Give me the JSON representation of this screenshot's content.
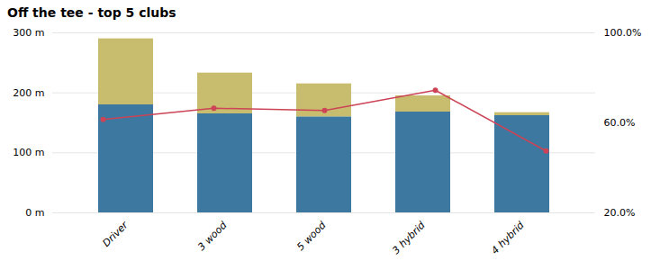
{
  "chart_data": {
    "type": "bar",
    "title": "Off the tee - top 5 clubs",
    "categories": [
      "Driver",
      "3 wood",
      "5 wood",
      "3 hybrid",
      "4 hybrid"
    ],
    "stacked": true,
    "grid": true,
    "series": [
      {
        "color": "#3C78A0",
        "values": [
          180,
          165,
          160,
          168,
          162
        ]
      },
      {
        "color": "#C8BC6E",
        "values": [
          110,
          68,
          55,
          27,
          5
        ]
      },
      {
        "type": "line",
        "axis": "y2",
        "color": "#CC4455",
        "marker": "circle",
        "values": [
          0.615,
          0.665,
          0.655,
          0.745,
          0.475
        ]
      }
    ],
    "ylim": [
      0,
      300
    ],
    "yticks": [
      {
        "value": 0,
        "label": "0 m"
      },
      {
        "value": 100,
        "label": "100 m"
      },
      {
        "value": 200,
        "label": "200 m"
      },
      {
        "value": 300,
        "label": "300 m"
      }
    ],
    "y2lim": [
      0.2,
      1.0
    ],
    "y2ticks": [
      {
        "value": 0.2,
        "label": "20.0%"
      },
      {
        "value": 0.6,
        "label": "60.0%"
      },
      {
        "value": 1.0,
        "label": "100.0%"
      }
    ]
  }
}
